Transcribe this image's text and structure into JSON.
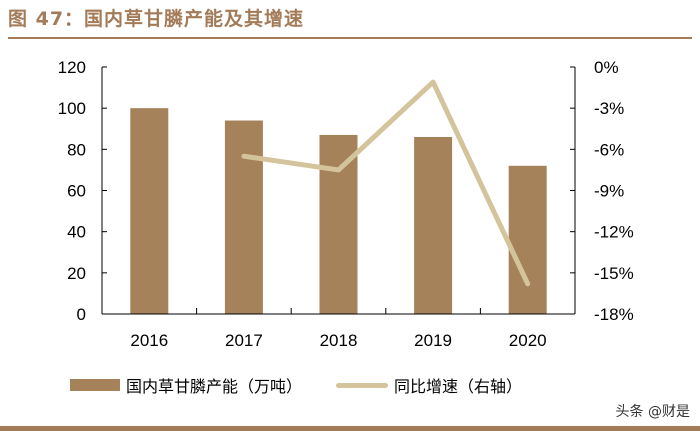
{
  "header": {
    "title": "图 47：国内草甘膦产能及其增速"
  },
  "legend": {
    "bar_label": "国内草甘膦产能（万吨）",
    "line_label": "同比增速（右轴）"
  },
  "watermark": "头条 @财是",
  "colors": {
    "bar": "#a58259",
    "line": "#d4c49c",
    "accent": "#a47b58"
  },
  "axes": {
    "left_ticks": [
      "0",
      "20",
      "40",
      "60",
      "80",
      "100",
      "120"
    ],
    "right_ticks": [
      "-18%",
      "-15%",
      "-12%",
      "-9%",
      "-6%",
      "-3%",
      "0%"
    ],
    "x_ticks": [
      "2016",
      "2017",
      "2018",
      "2019",
      "2020"
    ]
  },
  "chart_data": {
    "type": "bar",
    "title": "国内草甘膦产能及其增速",
    "categories": [
      "2016",
      "2017",
      "2018",
      "2019",
      "2020"
    ],
    "series": [
      {
        "name": "国内草甘膦产能（万吨）",
        "type": "bar",
        "axis": "left",
        "values": [
          100,
          94,
          87,
          86,
          72
        ]
      },
      {
        "name": "同比增速（右轴）",
        "type": "line",
        "axis": "right",
        "values": [
          null,
          -6.5,
          -7.5,
          -1.1,
          -15.8
        ],
        "unit": "%"
      }
    ],
    "xlabel": "",
    "ylabel": "",
    "ylim": [
      0,
      120
    ],
    "y2lim": [
      -18,
      0
    ],
    "grid": false,
    "legend_position": "bottom"
  }
}
